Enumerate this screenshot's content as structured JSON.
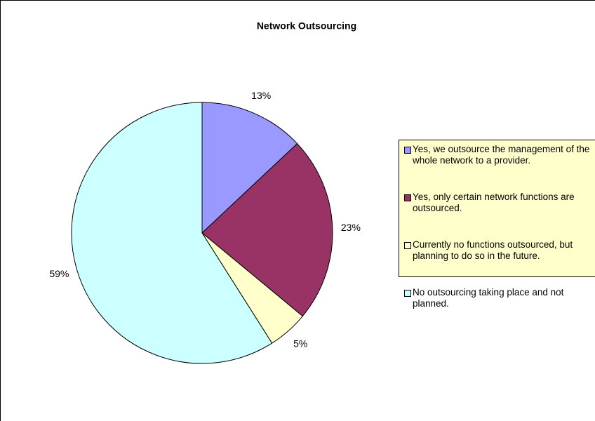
{
  "chart_data": {
    "type": "pie",
    "title": "Network Outsourcing",
    "categories": [
      "Yes, we outsource the management of the whole network to a provider.",
      "Yes, only certain network functions are outsourced.",
      "Currently no functions outsourced, but planning to do so in the future.",
      "No outsourcing taking place and not planned."
    ],
    "values": [
      13,
      23,
      5,
      59
    ],
    "value_labels": [
      "13%",
      "23%",
      "5%",
      "59%"
    ],
    "colors": [
      "#9999ff",
      "#993366",
      "#ffffcc",
      "#ccffff"
    ],
    "legend": "right"
  }
}
